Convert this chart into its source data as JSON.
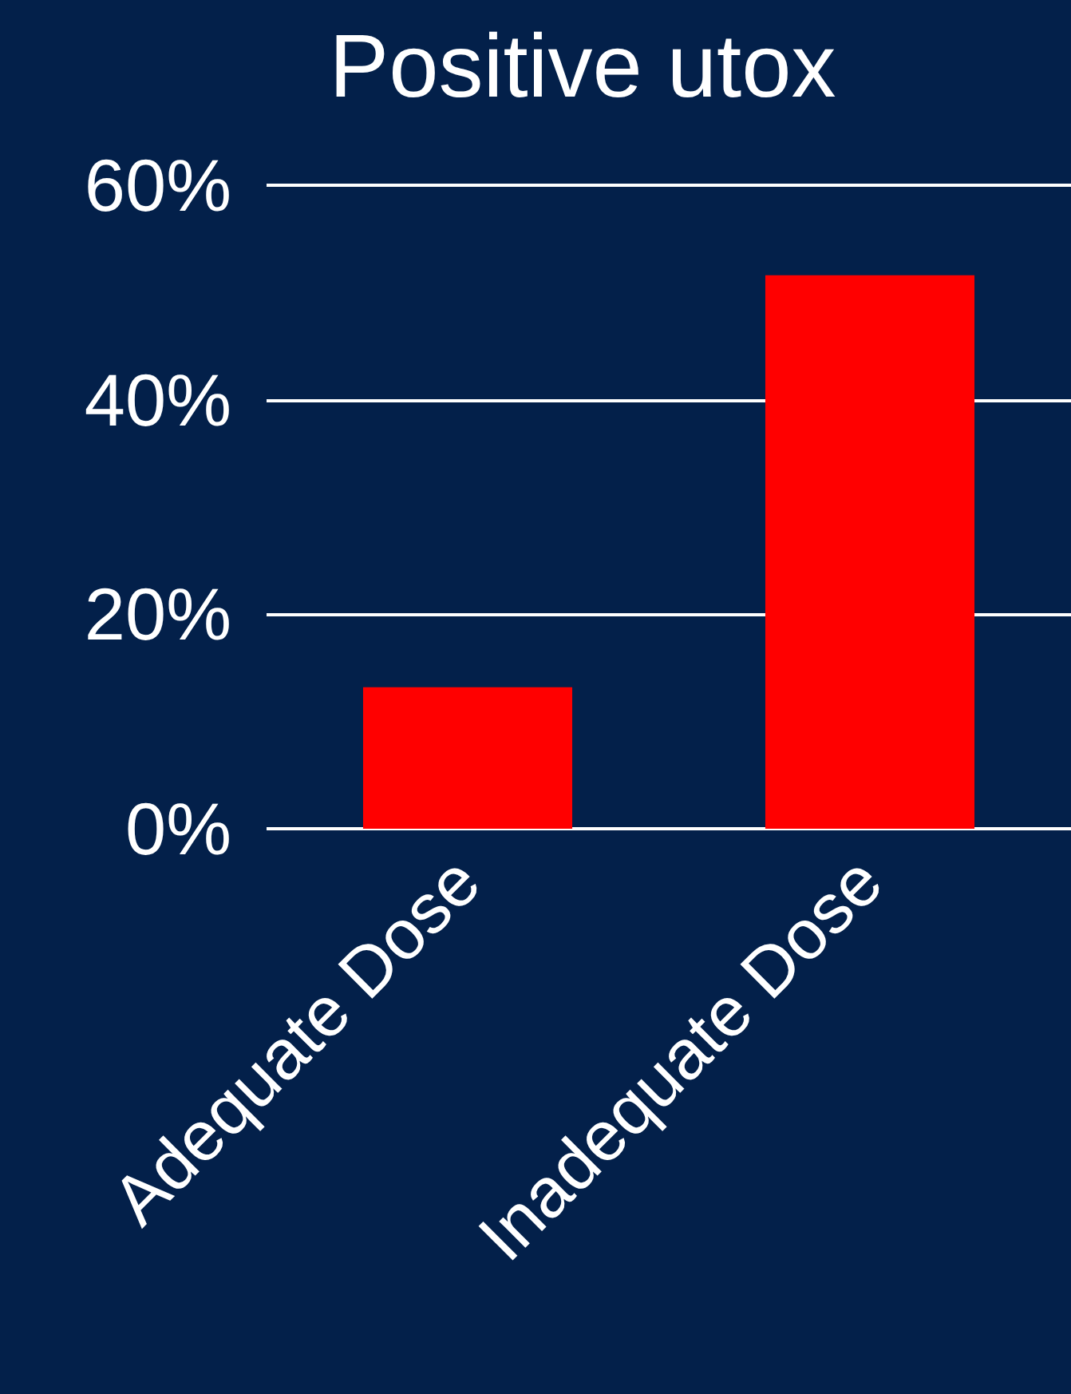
{
  "chart_data": {
    "type": "bar",
    "title": "Positive utox",
    "categories": [
      "Adequate Dose",
      "Inadequate Dose"
    ],
    "values": [
      13.2,
      51.6
    ],
    "color": "#ff0000",
    "ylim": [
      0,
      60
    ],
    "yticks": [
      {
        "value": 0,
        "label": "0%"
      },
      {
        "value": 20,
        "label": "20%"
      },
      {
        "value": 40,
        "label": "40%"
      },
      {
        "value": 60,
        "label": "60%"
      }
    ],
    "grid": "y"
  }
}
